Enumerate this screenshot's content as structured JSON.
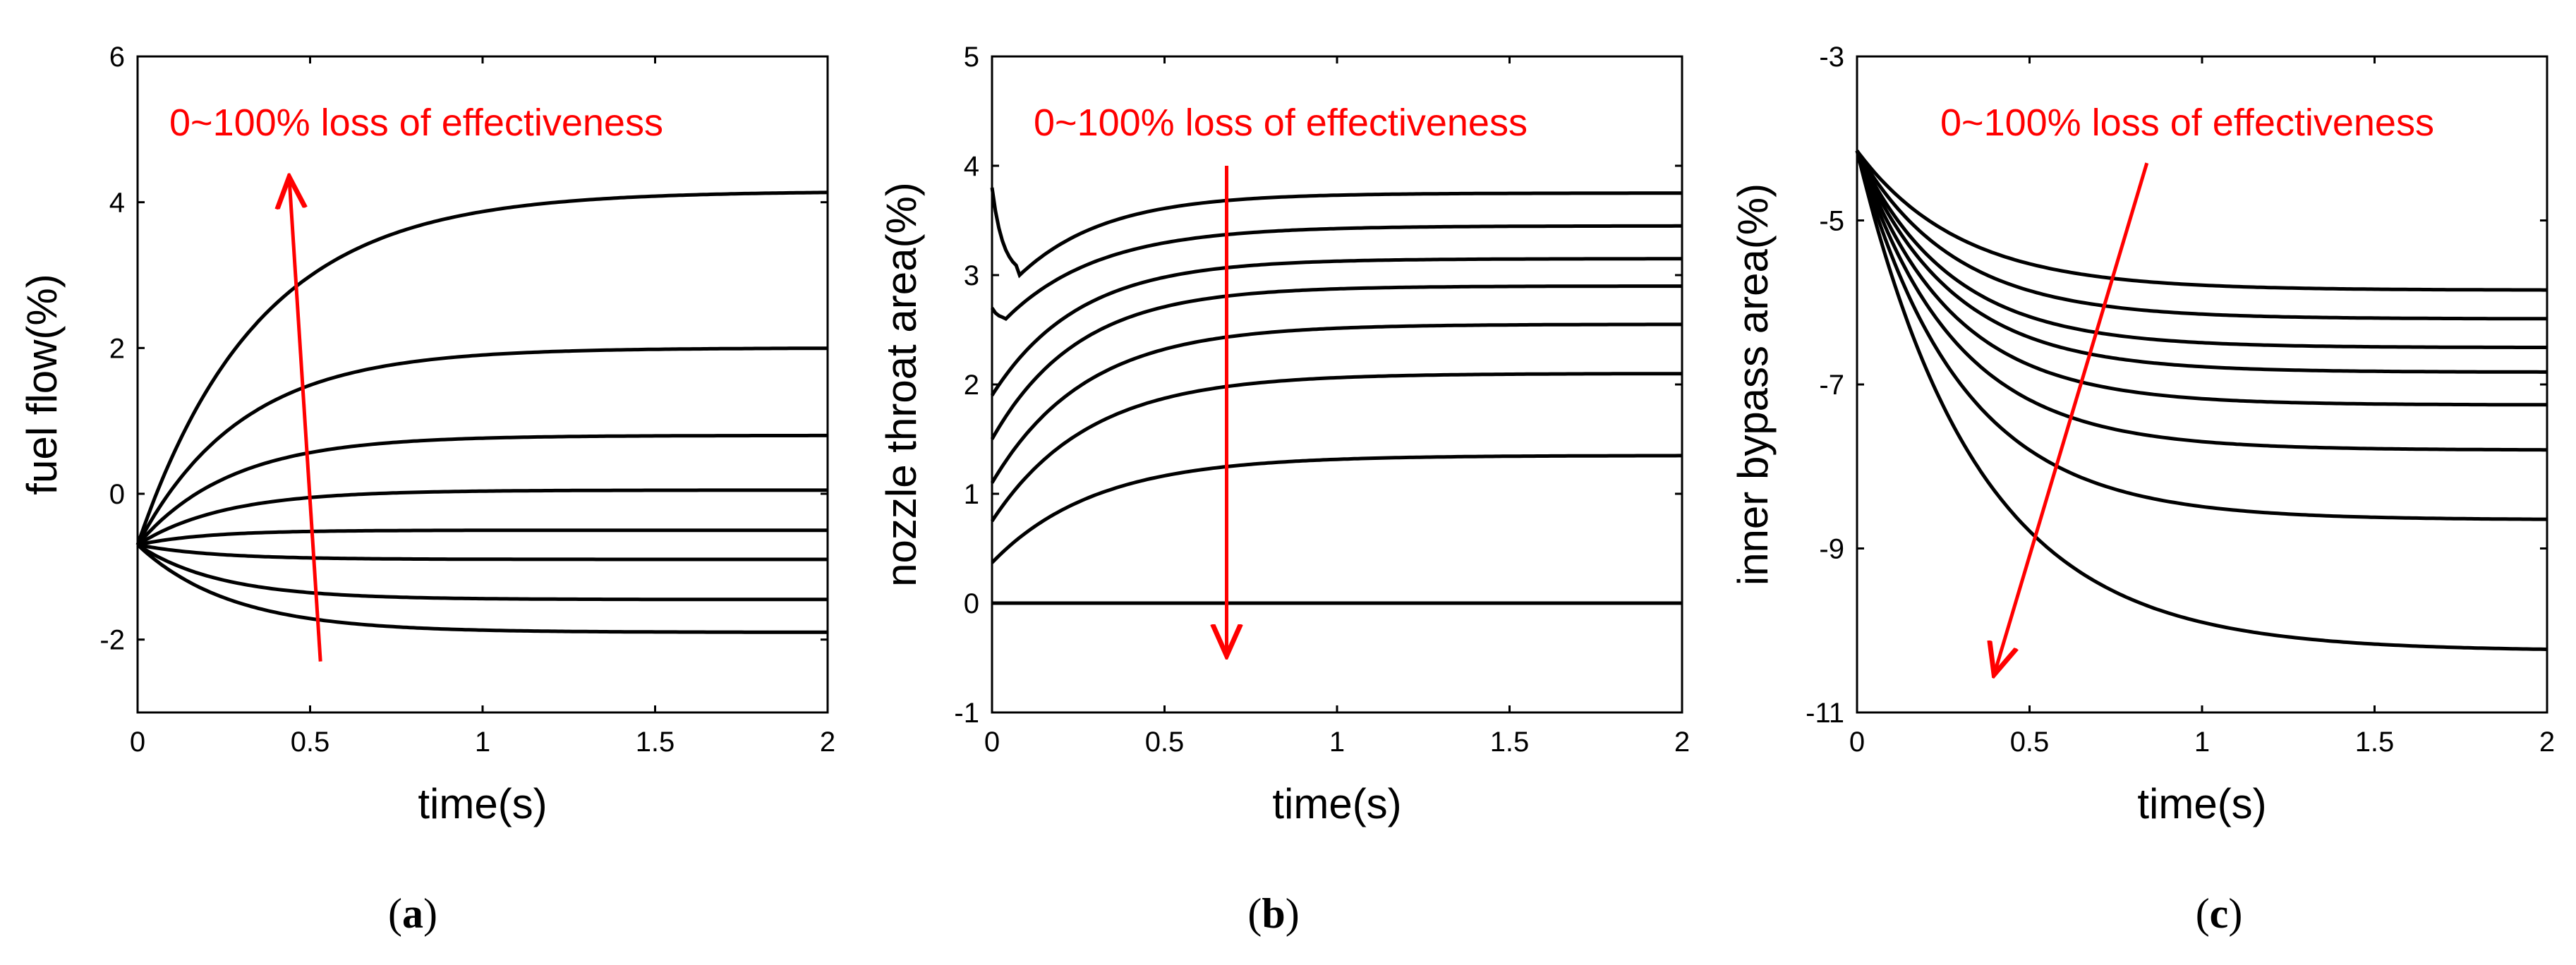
{
  "figure": {
    "panel_labels": [
      {
        "open": "(",
        "letter": "a",
        "close": ")"
      },
      {
        "open": "(",
        "letter": "b",
        "close": ")"
      },
      {
        "open": "(",
        "letter": "c",
        "close": ")"
      }
    ]
  },
  "colors": {
    "curve": "#000000",
    "annotation": "#ff0000",
    "axis": "#000000"
  },
  "chart_data": [
    {
      "type": "line",
      "panel": "a",
      "xlabel": "time(s)",
      "ylabel": "fuel flow(%)",
      "xlim": [
        0,
        2
      ],
      "ylim": [
        -3,
        6
      ],
      "xticks": [
        0,
        0.5,
        1,
        1.5,
        2
      ],
      "xtick_labels": [
        "0",
        "0.5",
        "1",
        "1.5",
        "2"
      ],
      "yticks": [
        -2,
        0,
        2,
        4,
        6
      ],
      "ytick_labels": [
        "-2",
        "0",
        "2",
        "4",
        "6"
      ],
      "annotation": "0~100% loss of effectiveness",
      "arrow": {
        "from": [
          0.53,
          -2.3
        ],
        "to": [
          0.44,
          4.3
        ]
      },
      "series": [
        {
          "name": "curve-1",
          "start": -0.7,
          "final": 4.15,
          "tau": 0.35
        },
        {
          "name": "curve-2",
          "start": -0.7,
          "final": 2.0,
          "tau": 0.3
        },
        {
          "name": "curve-3",
          "start": -0.7,
          "final": 0.8,
          "tau": 0.27
        },
        {
          "name": "curve-4",
          "start": -0.7,
          "final": 0.05,
          "tau": 0.25
        },
        {
          "name": "curve-5",
          "start": -0.7,
          "final": -0.5,
          "tau": 0.2
        },
        {
          "name": "curve-6",
          "start": -0.7,
          "final": -0.9,
          "tau": 0.22
        },
        {
          "name": "curve-7",
          "start": -0.7,
          "final": -1.45,
          "tau": 0.24
        },
        {
          "name": "curve-8",
          "start": -0.7,
          "final": -1.9,
          "tau": 0.27
        }
      ]
    },
    {
      "type": "line",
      "panel": "b",
      "xlabel": "time(s)",
      "ylabel": "nozzle throat area(%)",
      "xlim": [
        0,
        2
      ],
      "ylim": [
        -1,
        5
      ],
      "xticks": [
        0,
        0.5,
        1,
        1.5,
        2
      ],
      "xtick_labels": [
        "0",
        "0.5",
        "1",
        "1.5",
        "2"
      ],
      "yticks": [
        -1,
        0,
        1,
        2,
        3,
        4,
        5
      ],
      "ytick_labels": [
        "-1",
        "0",
        "1",
        "2",
        "3",
        "4",
        "5"
      ],
      "annotation": "0~100% loss of effectiveness",
      "arrow": {
        "from": [
          0.68,
          4.0
        ],
        "to": [
          0.68,
          -0.45
        ]
      },
      "series": [
        {
          "name": "curve-1",
          "start": 3.8,
          "dip": 3.0,
          "dip_t": 0.08,
          "final": 3.75,
          "tau": 0.25
        },
        {
          "name": "curve-2",
          "start": 2.7,
          "dip": 2.6,
          "dip_t": 0.04,
          "final": 3.45,
          "tau": 0.27
        },
        {
          "name": "curve-3",
          "start": 1.9,
          "final": 3.15,
          "tau": 0.25
        },
        {
          "name": "curve-4",
          "start": 1.5,
          "final": 2.9,
          "tau": 0.25
        },
        {
          "name": "curve-5",
          "start": 1.1,
          "final": 2.55,
          "tau": 0.27
        },
        {
          "name": "curve-6",
          "start": 0.75,
          "final": 2.1,
          "tau": 0.28
        },
        {
          "name": "curve-7",
          "start": 0.37,
          "final": 1.35,
          "tau": 0.3
        },
        {
          "name": "curve-8",
          "start": 0.0,
          "final": 0.0,
          "tau": 0.3
        }
      ]
    },
    {
      "type": "line",
      "panel": "c",
      "xlabel": "time(s)",
      "ylabel": "inner bypass area(%)",
      "xlim": [
        0,
        2
      ],
      "ylim": [
        -11,
        -3
      ],
      "xticks": [
        0,
        0.5,
        1,
        1.5,
        2
      ],
      "xtick_labels": [
        "0",
        "0.5",
        "1",
        "1.5",
        "2"
      ],
      "yticks": [
        -11,
        -9,
        -7,
        -5,
        -3
      ],
      "ytick_labels": [
        "-11",
        "-9",
        "-7",
        "-5",
        "-3"
      ],
      "annotation": "0~100% loss of effectiveness",
      "arrow": {
        "from": [
          0.84,
          -4.3
        ],
        "to": [
          0.4,
          -10.5
        ]
      },
      "series": [
        {
          "name": "curve-1",
          "start": -4.15,
          "final": -5.85,
          "tau": 0.3
        },
        {
          "name": "curve-2",
          "start": -4.15,
          "final": -6.2,
          "tau": 0.28
        },
        {
          "name": "curve-3",
          "start": -4.15,
          "final": -6.55,
          "tau": 0.27
        },
        {
          "name": "curve-4",
          "start": -4.15,
          "final": -6.85,
          "tau": 0.27
        },
        {
          "name": "curve-5",
          "start": -4.15,
          "final": -7.25,
          "tau": 0.27
        },
        {
          "name": "curve-6",
          "start": -4.15,
          "final": -7.8,
          "tau": 0.28
        },
        {
          "name": "curve-7",
          "start": -4.15,
          "final": -8.65,
          "tau": 0.3
        },
        {
          "name": "curve-8",
          "start": -4.15,
          "final": -10.25,
          "tau": 0.35
        }
      ]
    }
  ]
}
